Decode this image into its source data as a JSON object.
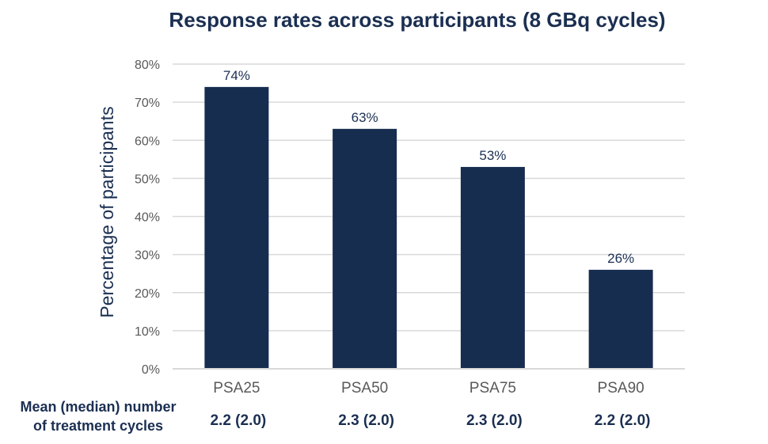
{
  "chart_data": {
    "type": "bar",
    "title": "Response rates across participants (8 GBq cycles)",
    "ylabel": "Percentage of participants",
    "xlabel": "",
    "categories": [
      "PSA25",
      "PSA50",
      "PSA75",
      "PSA90"
    ],
    "values": [
      74,
      63,
      53,
      26
    ],
    "data_labels": [
      "74%",
      "63%",
      "53%",
      "26%"
    ],
    "ylim": [
      0,
      80
    ],
    "yticks": [
      0,
      10,
      20,
      30,
      40,
      50,
      60,
      70,
      80
    ],
    "ytick_labels": [
      "0%",
      "10%",
      "20%",
      "30%",
      "40%",
      "50%",
      "60%",
      "70%",
      "80%"
    ],
    "grid": true,
    "bar_color": "#162d50",
    "grid_color": "#d9d9d9"
  },
  "secondary_row": {
    "label_line1": "Mean (median) number",
    "label_line2": "of treatment cycles",
    "values": [
      "2.2 (2.0)",
      "2.3 (2.0)",
      "2.3 (2.0)",
      "2.2 (2.0)"
    ]
  }
}
